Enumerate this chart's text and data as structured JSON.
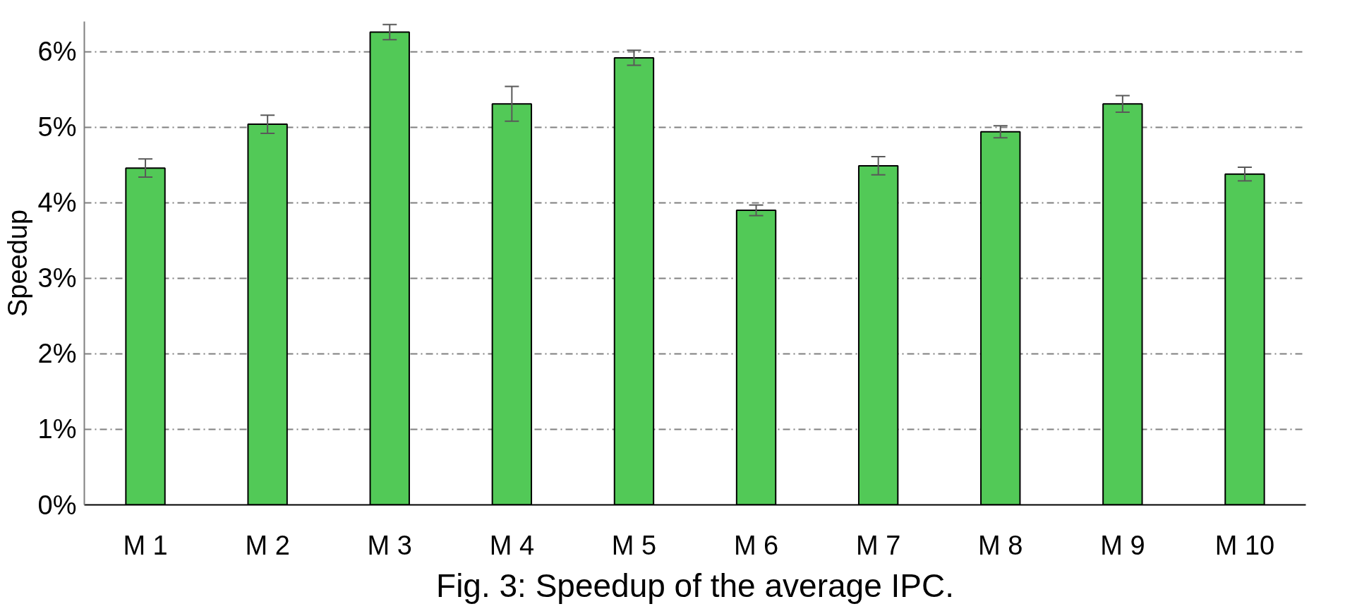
{
  "chart_data": {
    "type": "bar",
    "title": "Fig. 3: Speedup of the average IPC.",
    "ylabel": "Speedup",
    "categories": [
      "M 1",
      "M 2",
      "M 3",
      "M 4",
      "M 5",
      "M 6",
      "M 7",
      "M 8",
      "M 9",
      "M 10"
    ],
    "values": [
      4.46,
      5.04,
      6.26,
      5.31,
      5.92,
      3.9,
      4.49,
      4.94,
      5.31,
      4.38
    ],
    "errors": [
      0.12,
      0.12,
      0.1,
      0.23,
      0.1,
      0.07,
      0.12,
      0.08,
      0.11,
      0.09
    ],
    "color": "#52c957",
    "ylim": [
      0,
      6.4
    ],
    "yticks": [
      {
        "value": 0,
        "label": "0%"
      },
      {
        "value": 1,
        "label": "1%"
      },
      {
        "value": 2,
        "label": "2%"
      },
      {
        "value": 3,
        "label": "3%"
      },
      {
        "value": 4,
        "label": "4%"
      },
      {
        "value": 5,
        "label": "5%"
      },
      {
        "value": 6,
        "label": "6%"
      }
    ],
    "grid": "y"
  }
}
